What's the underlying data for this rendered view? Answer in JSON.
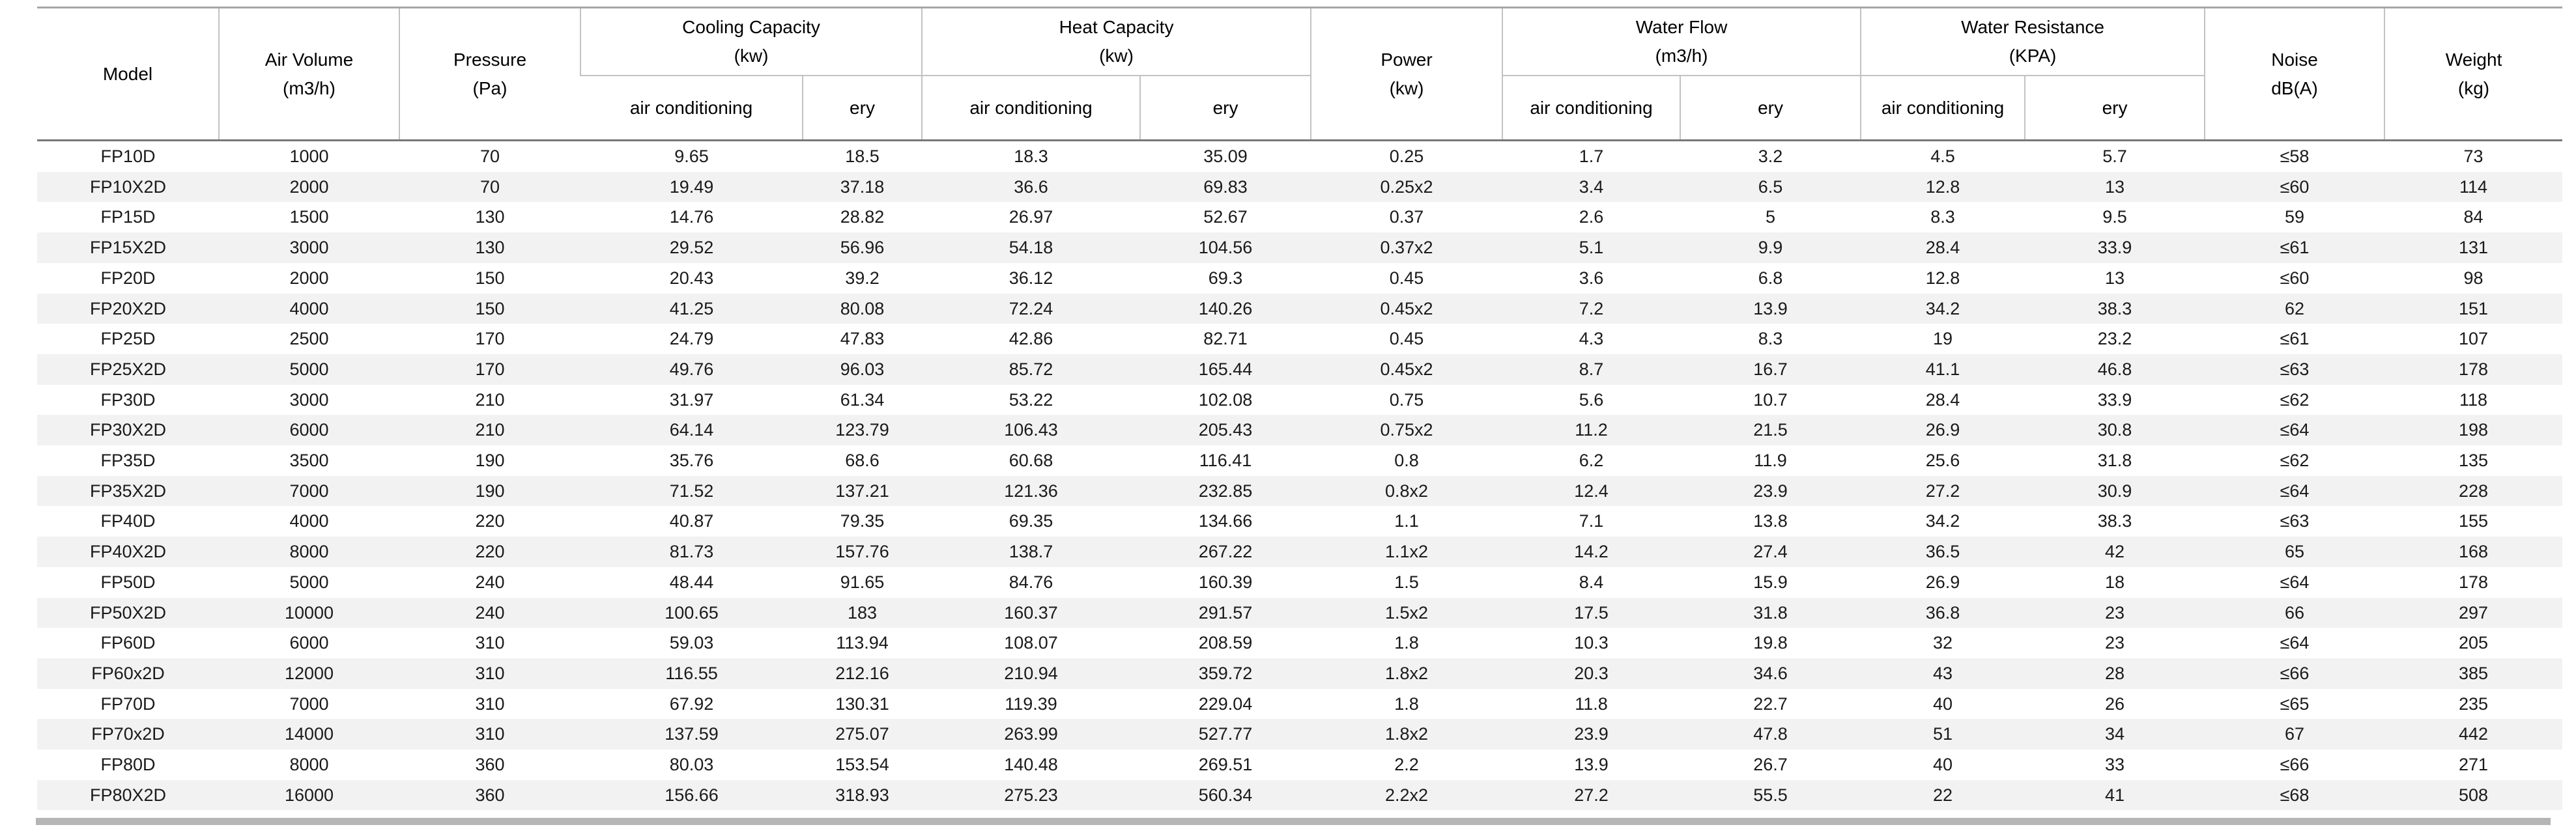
{
  "table": {
    "header": {
      "model": "Model",
      "air_volume": "Air Volume\n(m3/h)",
      "pressure": "Pressure\n(Pa)",
      "cooling_capacity": "Cooling Capacity\n(kw)",
      "heat_capacity": "Heat Capacity\n(kw)",
      "power": "Power\n(kw)",
      "water_flow": "Water Flow\n(m3/h)",
      "water_resistance": "Water Resistance\n(KPA)",
      "noise": "Noise\ndB(A)",
      "weight": "Weight\n(kg)",
      "sub_air_conditioning": "air conditioning",
      "sub_ery": "ery"
    },
    "column_keys": [
      "model",
      "air_volume",
      "pressure",
      "cooling_ac",
      "cooling_ery",
      "heat_ac",
      "heat_ery",
      "power",
      "water_flow_ac",
      "water_flow_ery",
      "water_resistance_ac",
      "water_resistance_ery",
      "noise",
      "weight"
    ],
    "rows": [
      [
        "FP10D",
        "1000",
        "70",
        "9.65",
        "18.5",
        "18.3",
        "35.09",
        "0.25",
        "1.7",
        "3.2",
        "4.5",
        "5.7",
        "≤58",
        "73"
      ],
      [
        "FP10X2D",
        "2000",
        "70",
        "19.49",
        "37.18",
        "36.6",
        "69.83",
        "0.25x2",
        "3.4",
        "6.5",
        "12.8",
        "13",
        "≤60",
        "114"
      ],
      [
        "FP15D",
        "1500",
        "130",
        "14.76",
        "28.82",
        "26.97",
        "52.67",
        "0.37",
        "2.6",
        "5",
        "8.3",
        "9.5",
        "59",
        "84"
      ],
      [
        "FP15X2D",
        "3000",
        "130",
        "29.52",
        "56.96",
        "54.18",
        "104.56",
        "0.37x2",
        "5.1",
        "9.9",
        "28.4",
        "33.9",
        "≤61",
        "131"
      ],
      [
        "FP20D",
        "2000",
        "150",
        "20.43",
        "39.2",
        "36.12",
        "69.3",
        "0.45",
        "3.6",
        "6.8",
        "12.8",
        "13",
        "≤60",
        "98"
      ],
      [
        "FP20X2D",
        "4000",
        "150",
        "41.25",
        "80.08",
        "72.24",
        "140.26",
        "0.45x2",
        "7.2",
        "13.9",
        "34.2",
        "38.3",
        "62",
        "151"
      ],
      [
        "FP25D",
        "2500",
        "170",
        "24.79",
        "47.83",
        "42.86",
        "82.71",
        "0.45",
        "4.3",
        "8.3",
        "19",
        "23.2",
        "≤61",
        "107"
      ],
      [
        "FP25X2D",
        "5000",
        "170",
        "49.76",
        "96.03",
        "85.72",
        "165.44",
        "0.45x2",
        "8.7",
        "16.7",
        "41.1",
        "46.8",
        "≤63",
        "178"
      ],
      [
        "FP30D",
        "3000",
        "210",
        "31.97",
        "61.34",
        "53.22",
        "102.08",
        "0.75",
        "5.6",
        "10.7",
        "28.4",
        "33.9",
        "≤62",
        "118"
      ],
      [
        "FP30X2D",
        "6000",
        "210",
        "64.14",
        "123.79",
        "106.43",
        "205.43",
        "0.75x2",
        "11.2",
        "21.5",
        "26.9",
        "30.8",
        "≤64",
        "198"
      ],
      [
        "FP35D",
        "3500",
        "190",
        "35.76",
        "68.6",
        "60.68",
        "116.41",
        "0.8",
        "6.2",
        "11.9",
        "25.6",
        "31.8",
        "≤62",
        "135"
      ],
      [
        "FP35X2D",
        "7000",
        "190",
        "71.52",
        "137.21",
        "121.36",
        "232.85",
        "0.8x2",
        "12.4",
        "23.9",
        "27.2",
        "30.9",
        "≤64",
        "228"
      ],
      [
        "FP40D",
        "4000",
        "220",
        "40.87",
        "79.35",
        "69.35",
        "134.66",
        "1.1",
        "7.1",
        "13.8",
        "34.2",
        "38.3",
        "≤63",
        "155"
      ],
      [
        "FP40X2D",
        "8000",
        "220",
        "81.73",
        "157.76",
        "138.7",
        "267.22",
        "1.1x2",
        "14.2",
        "27.4",
        "36.5",
        "42",
        "65",
        "168"
      ],
      [
        "FP50D",
        "5000",
        "240",
        "48.44",
        "91.65",
        "84.76",
        "160.39",
        "1.5",
        "8.4",
        "15.9",
        "26.9",
        "18",
        "≤64",
        "178"
      ],
      [
        "FP50X2D",
        "10000",
        "240",
        "100.65",
        "183",
        "160.37",
        "291.57",
        "1.5x2",
        "17.5",
        "31.8",
        "36.8",
        "23",
        "66",
        "297"
      ],
      [
        "FP60D",
        "6000",
        "310",
        "59.03",
        "113.94",
        "108.07",
        "208.59",
        "1.8",
        "10.3",
        "19.8",
        "32",
        "23",
        "≤64",
        "205"
      ],
      [
        "FP60x2D",
        "12000",
        "310",
        "116.55",
        "212.16",
        "210.94",
        "359.72",
        "1.8x2",
        "20.3",
        "34.6",
        "43",
        "28",
        "≤66",
        "385"
      ],
      [
        "FP70D",
        "7000",
        "310",
        "67.92",
        "130.31",
        "119.39",
        "229.04",
        "1.8",
        "11.8",
        "22.7",
        "40",
        "26",
        "≤65",
        "235"
      ],
      [
        "FP70x2D",
        "14000",
        "310",
        "137.59",
        "275.07",
        "263.99",
        "527.77",
        "1.8x2",
        "23.9",
        "47.8",
        "51",
        "34",
        "67",
        "442"
      ],
      [
        "FP80D",
        "8000",
        "360",
        "80.03",
        "153.54",
        "140.48",
        "269.51",
        "2.2",
        "13.9",
        "26.7",
        "40",
        "33",
        "≤66",
        "271"
      ],
      [
        "FP80X2D",
        "16000",
        "360",
        "156.66",
        "318.93",
        "275.23",
        "560.34",
        "2.2x2",
        "27.2",
        "55.5",
        "22",
        "41",
        "≤68",
        "508"
      ]
    ],
    "colors": {
      "stripe": "#f2f2f2",
      "grid_light": "#c2c2c2",
      "header_rule": "#787878",
      "top_rule": "#a6a6a6",
      "bottom_bar": "#b5b5b5"
    }
  }
}
